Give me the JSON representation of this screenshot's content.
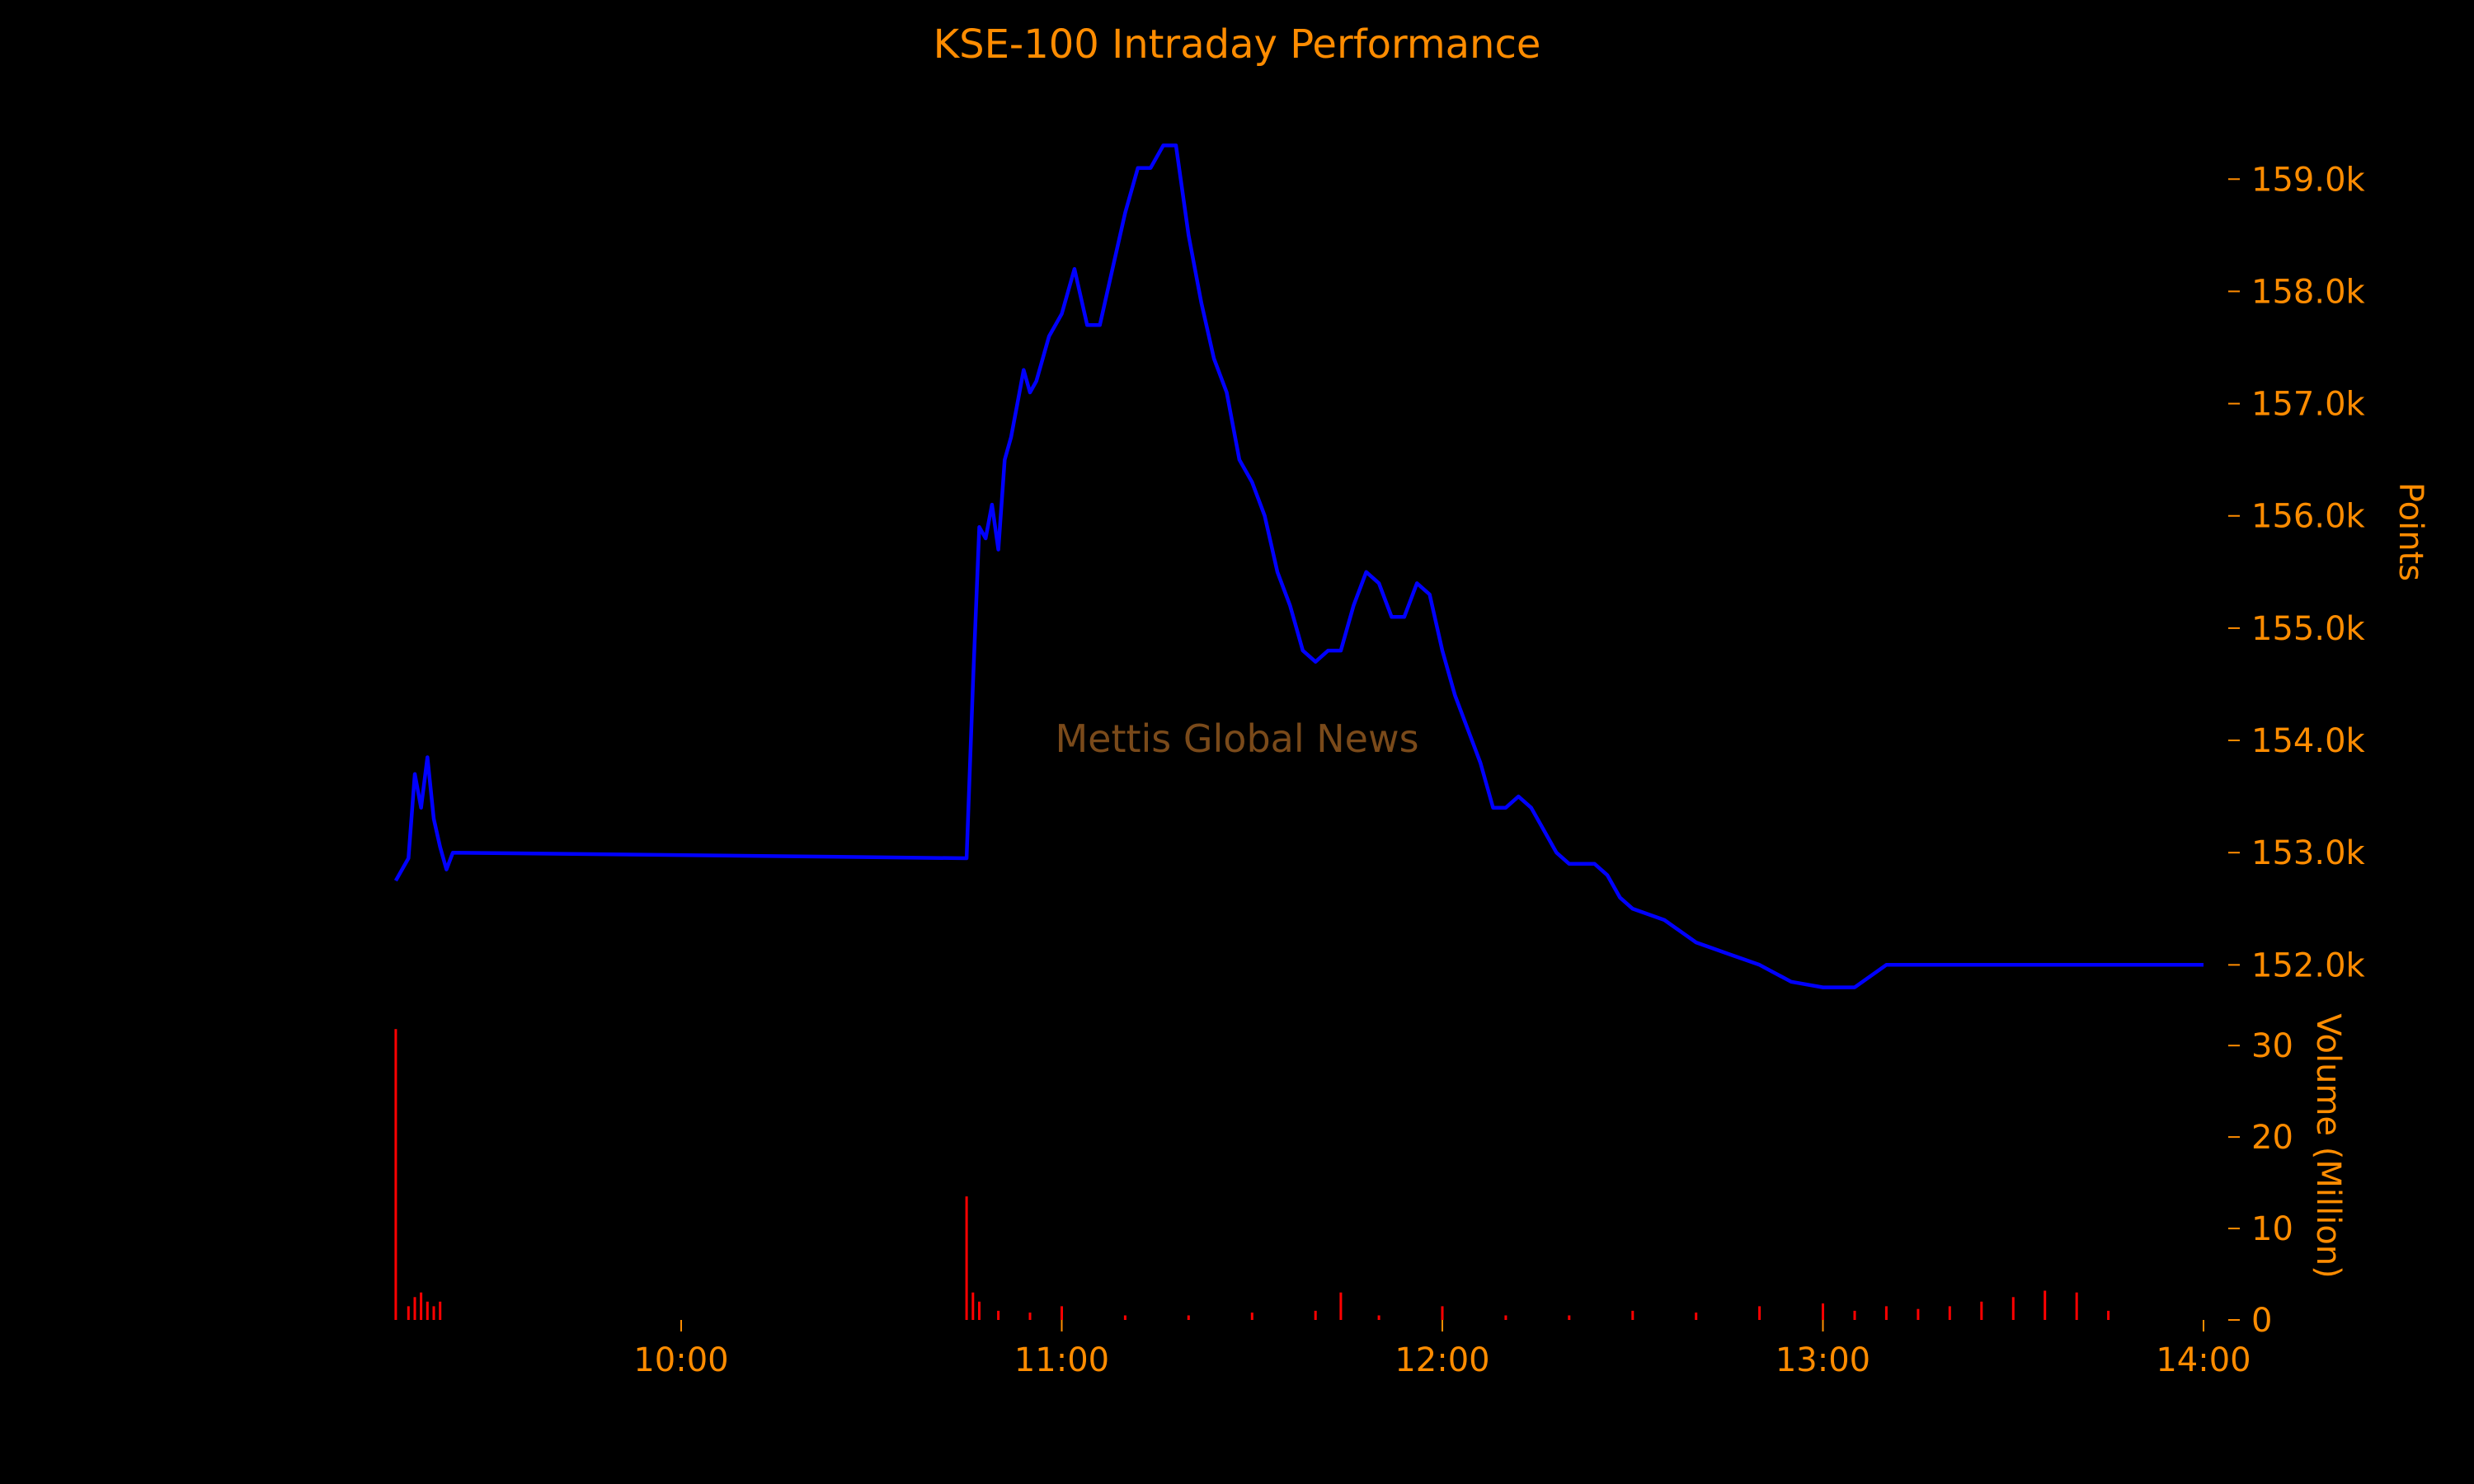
{
  "chart_data": {
    "type": "line",
    "title": "KSE-100 Intraday Performance",
    "watermark": "Mettis Global News",
    "colors": {
      "text": "#ff8c00",
      "price_line": "#0000ff",
      "volume_bars": "#ff0000",
      "watermark": "#7a4a1a",
      "background": "#000000"
    },
    "x_axis": {
      "type": "time",
      "ticks": [
        "10:00",
        "11:00",
        "12:00",
        "13:00",
        "14:00"
      ],
      "range": [
        "09:15",
        "14:00"
      ]
    },
    "price_panel": {
      "ylabel": "Points",
      "ylim": [
        151650,
        159450
      ],
      "ticks": [
        "152.0k",
        "153.0k",
        "154.0k",
        "155.0k",
        "156.0k",
        "157.0k",
        "158.0k",
        "159.0k"
      ],
      "tick_values": [
        152000,
        153000,
        154000,
        155000,
        156000,
        157000,
        158000,
        159000
      ],
      "series": [
        {
          "name": "KSE-100",
          "x": [
            "09:15",
            "09:17",
            "09:18",
            "09:19",
            "09:20",
            "09:21",
            "09:22",
            "09:23",
            "09:24",
            "10:45",
            "10:46",
            "10:47",
            "10:48",
            "10:49",
            "10:50",
            "10:51",
            "10:52",
            "10:53",
            "10:54",
            "10:55",
            "10:56",
            "10:58",
            "11:00",
            "11:02",
            "11:04",
            "11:06",
            "11:08",
            "11:10",
            "11:12",
            "11:14",
            "11:16",
            "11:18",
            "11:20",
            "11:22",
            "11:24",
            "11:26",
            "11:28",
            "11:30",
            "11:32",
            "11:34",
            "11:36",
            "11:38",
            "11:40",
            "11:42",
            "11:44",
            "11:46",
            "11:48",
            "11:50",
            "11:52",
            "11:54",
            "11:56",
            "11:58",
            "12:00",
            "12:02",
            "12:04",
            "12:06",
            "12:08",
            "12:10",
            "12:12",
            "12:14",
            "12:16",
            "12:18",
            "12:20",
            "12:22",
            "12:24",
            "12:26",
            "12:28",
            "12:30",
            "12:35",
            "12:40",
            "12:45",
            "12:50",
            "12:55",
            "13:00",
            "13:05",
            "13:10",
            "13:15",
            "13:20",
            "13:25",
            "13:30",
            "13:35",
            "13:40",
            "13:45",
            "13:47",
            "13:48",
            "14:00"
          ],
          "values": [
            152750,
            152950,
            153700,
            153400,
            153850,
            153300,
            153050,
            152850,
            153000,
            152950,
            154500,
            155900,
            155800,
            156100,
            155700,
            156500,
            156700,
            157000,
            157300,
            157100,
            157200,
            157600,
            157800,
            158200,
            157700,
            157700,
            158200,
            158700,
            159100,
            159100,
            159300,
            159300,
            158500,
            157900,
            157400,
            157100,
            156500,
            156300,
            156000,
            155500,
            155200,
            154800,
            154700,
            154800,
            154800,
            155200,
            155500,
            155400,
            155100,
            155100,
            155400,
            155300,
            154800,
            154400,
            154100,
            153800,
            153400,
            153400,
            153500,
            153400,
            153200,
            153000,
            152900,
            152900,
            152900,
            152800,
            152600,
            152500,
            152400,
            152200,
            152100,
            152000,
            151850,
            151800,
            151800,
            152000,
            152000,
            152000,
            152000,
            152000,
            152000,
            152000,
            152000,
            152000,
            152000,
            152000
          ]
        }
      ]
    },
    "volume_panel": {
      "ylabel": "Volume (Million)",
      "ylim": [
        0,
        32
      ],
      "ticks": [
        "0",
        "10",
        "20",
        "30"
      ],
      "tick_values": [
        0,
        10,
        20,
        30
      ],
      "series": [
        {
          "name": "Volume",
          "x": [
            "09:15",
            "09:17",
            "09:18",
            "09:19",
            "09:20",
            "09:21",
            "09:22",
            "10:45",
            "10:46",
            "10:47",
            "10:50",
            "10:55",
            "11:00",
            "11:10",
            "11:20",
            "11:30",
            "11:40",
            "11:44",
            "11:50",
            "12:00",
            "12:10",
            "12:20",
            "12:30",
            "12:40",
            "12:50",
            "13:00",
            "13:05",
            "13:10",
            "13:15",
            "13:20",
            "13:25",
            "13:30",
            "13:35",
            "13:40",
            "13:45"
          ],
          "values": [
            31.8,
            1.5,
            2.5,
            3.0,
            2.0,
            1.5,
            2.0,
            13.5,
            3.0,
            2.0,
            1.0,
            0.8,
            1.5,
            0.5,
            0.5,
            0.8,
            1.0,
            3.0,
            0.5,
            1.5,
            0.5,
            0.5,
            1.0,
            0.8,
            1.5,
            1.8,
            1.0,
            1.5,
            1.2,
            1.5,
            2.0,
            2.5,
            3.2,
            3.0,
            1.0
          ]
        }
      ]
    }
  }
}
